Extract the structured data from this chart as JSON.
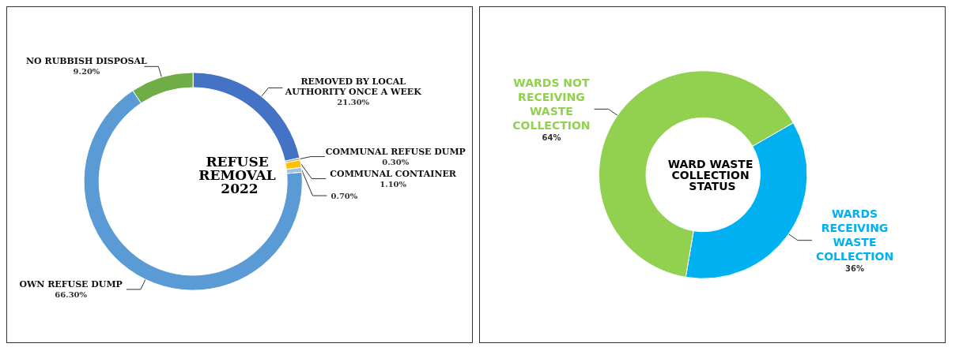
{
  "chart_data": [
    {
      "type": "donut",
      "title": "REFUSE REMOVAL 2022",
      "categories": [
        "REMOVED BY LOCAL AUTHORITY ONCE A WEEK",
        "COMMUNAL REFUSE DUMP",
        "COMMUNAL CONTAINER",
        null,
        "OWN REFUSE DUMP",
        "NO RUBBISH DISPOSAL"
      ],
      "values": [
        21.3,
        0.3,
        1.1,
        0.7,
        66.3,
        9.2
      ],
      "value_labels": [
        "21.30%",
        "0.30%",
        "1.10%",
        "0.70%",
        "66.30%",
        "9.20%"
      ],
      "colors": [
        "#4472c4",
        "#a5a5a5",
        "#ffc000",
        "#9dc3e6",
        "#5b9bd5",
        "#70ad47"
      ]
    },
    {
      "type": "donut",
      "title": "WARD WASTE COLLECTION STATUS",
      "categories": [
        "WARDS RECEIVING WASTE COLLECTION",
        "WARDS NOT RECEIVING WASTE COLLECTION"
      ],
      "values": [
        36,
        64
      ],
      "value_labels": [
        "36%",
        "64%"
      ],
      "colors": [
        "#00b0f0",
        "#92d050"
      ]
    }
  ]
}
